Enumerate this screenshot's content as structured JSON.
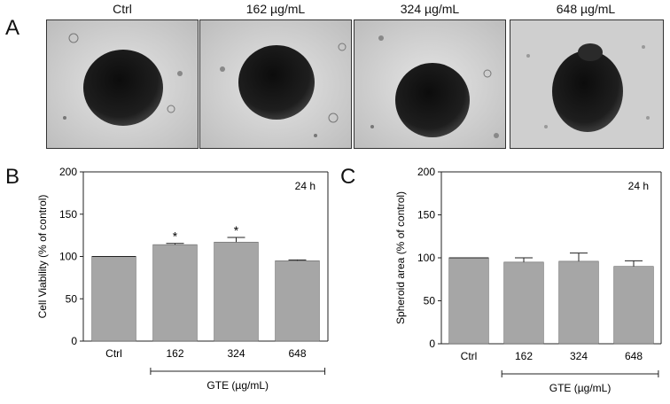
{
  "panels": {
    "a": "A",
    "b": "B",
    "c": "C"
  },
  "images": [
    {
      "label": "Ctrl"
    },
    {
      "label": "162 µg/mL"
    },
    {
      "label": "324 µg/mL"
    },
    {
      "label": "648 µg/mL"
    }
  ],
  "colors": {
    "bar": "#a6a6a6",
    "axis": "#222222",
    "spheroid": "#1a1a1a",
    "background_field": "#dcdcdc"
  },
  "chart_data": [
    {
      "type": "bar",
      "panel": "B",
      "categories": [
        "Ctrl",
        "162",
        "324",
        "648"
      ],
      "values": [
        100,
        114,
        117,
        95
      ],
      "errors": [
        0,
        1.5,
        5.5,
        1
      ],
      "significance": [
        "",
        "*",
        "*",
        ""
      ],
      "ylabel": "Cell Viability  (% of control)",
      "xlabel": "GTE (µg/mL)",
      "annotation": "24 h",
      "ylim": [
        0,
        200
      ],
      "yticks": [
        "0",
        "50",
        "100",
        "150",
        "200"
      ],
      "grid": false
    },
    {
      "type": "bar",
      "panel": "C",
      "categories": [
        "Ctrl",
        "162",
        "324",
        "648"
      ],
      "values": [
        100,
        95,
        96,
        90
      ],
      "errors": [
        0,
        5,
        9.5,
        6.5
      ],
      "significance": [
        "",
        "",
        "",
        ""
      ],
      "ylabel": "Spheroid area  (% of control)",
      "xlabel": "GTE (µg/mL)",
      "annotation": "24 h",
      "ylim": [
        0,
        200
      ],
      "yticks": [
        "0",
        "50",
        "100",
        "150",
        "200"
      ],
      "grid": false
    }
  ]
}
